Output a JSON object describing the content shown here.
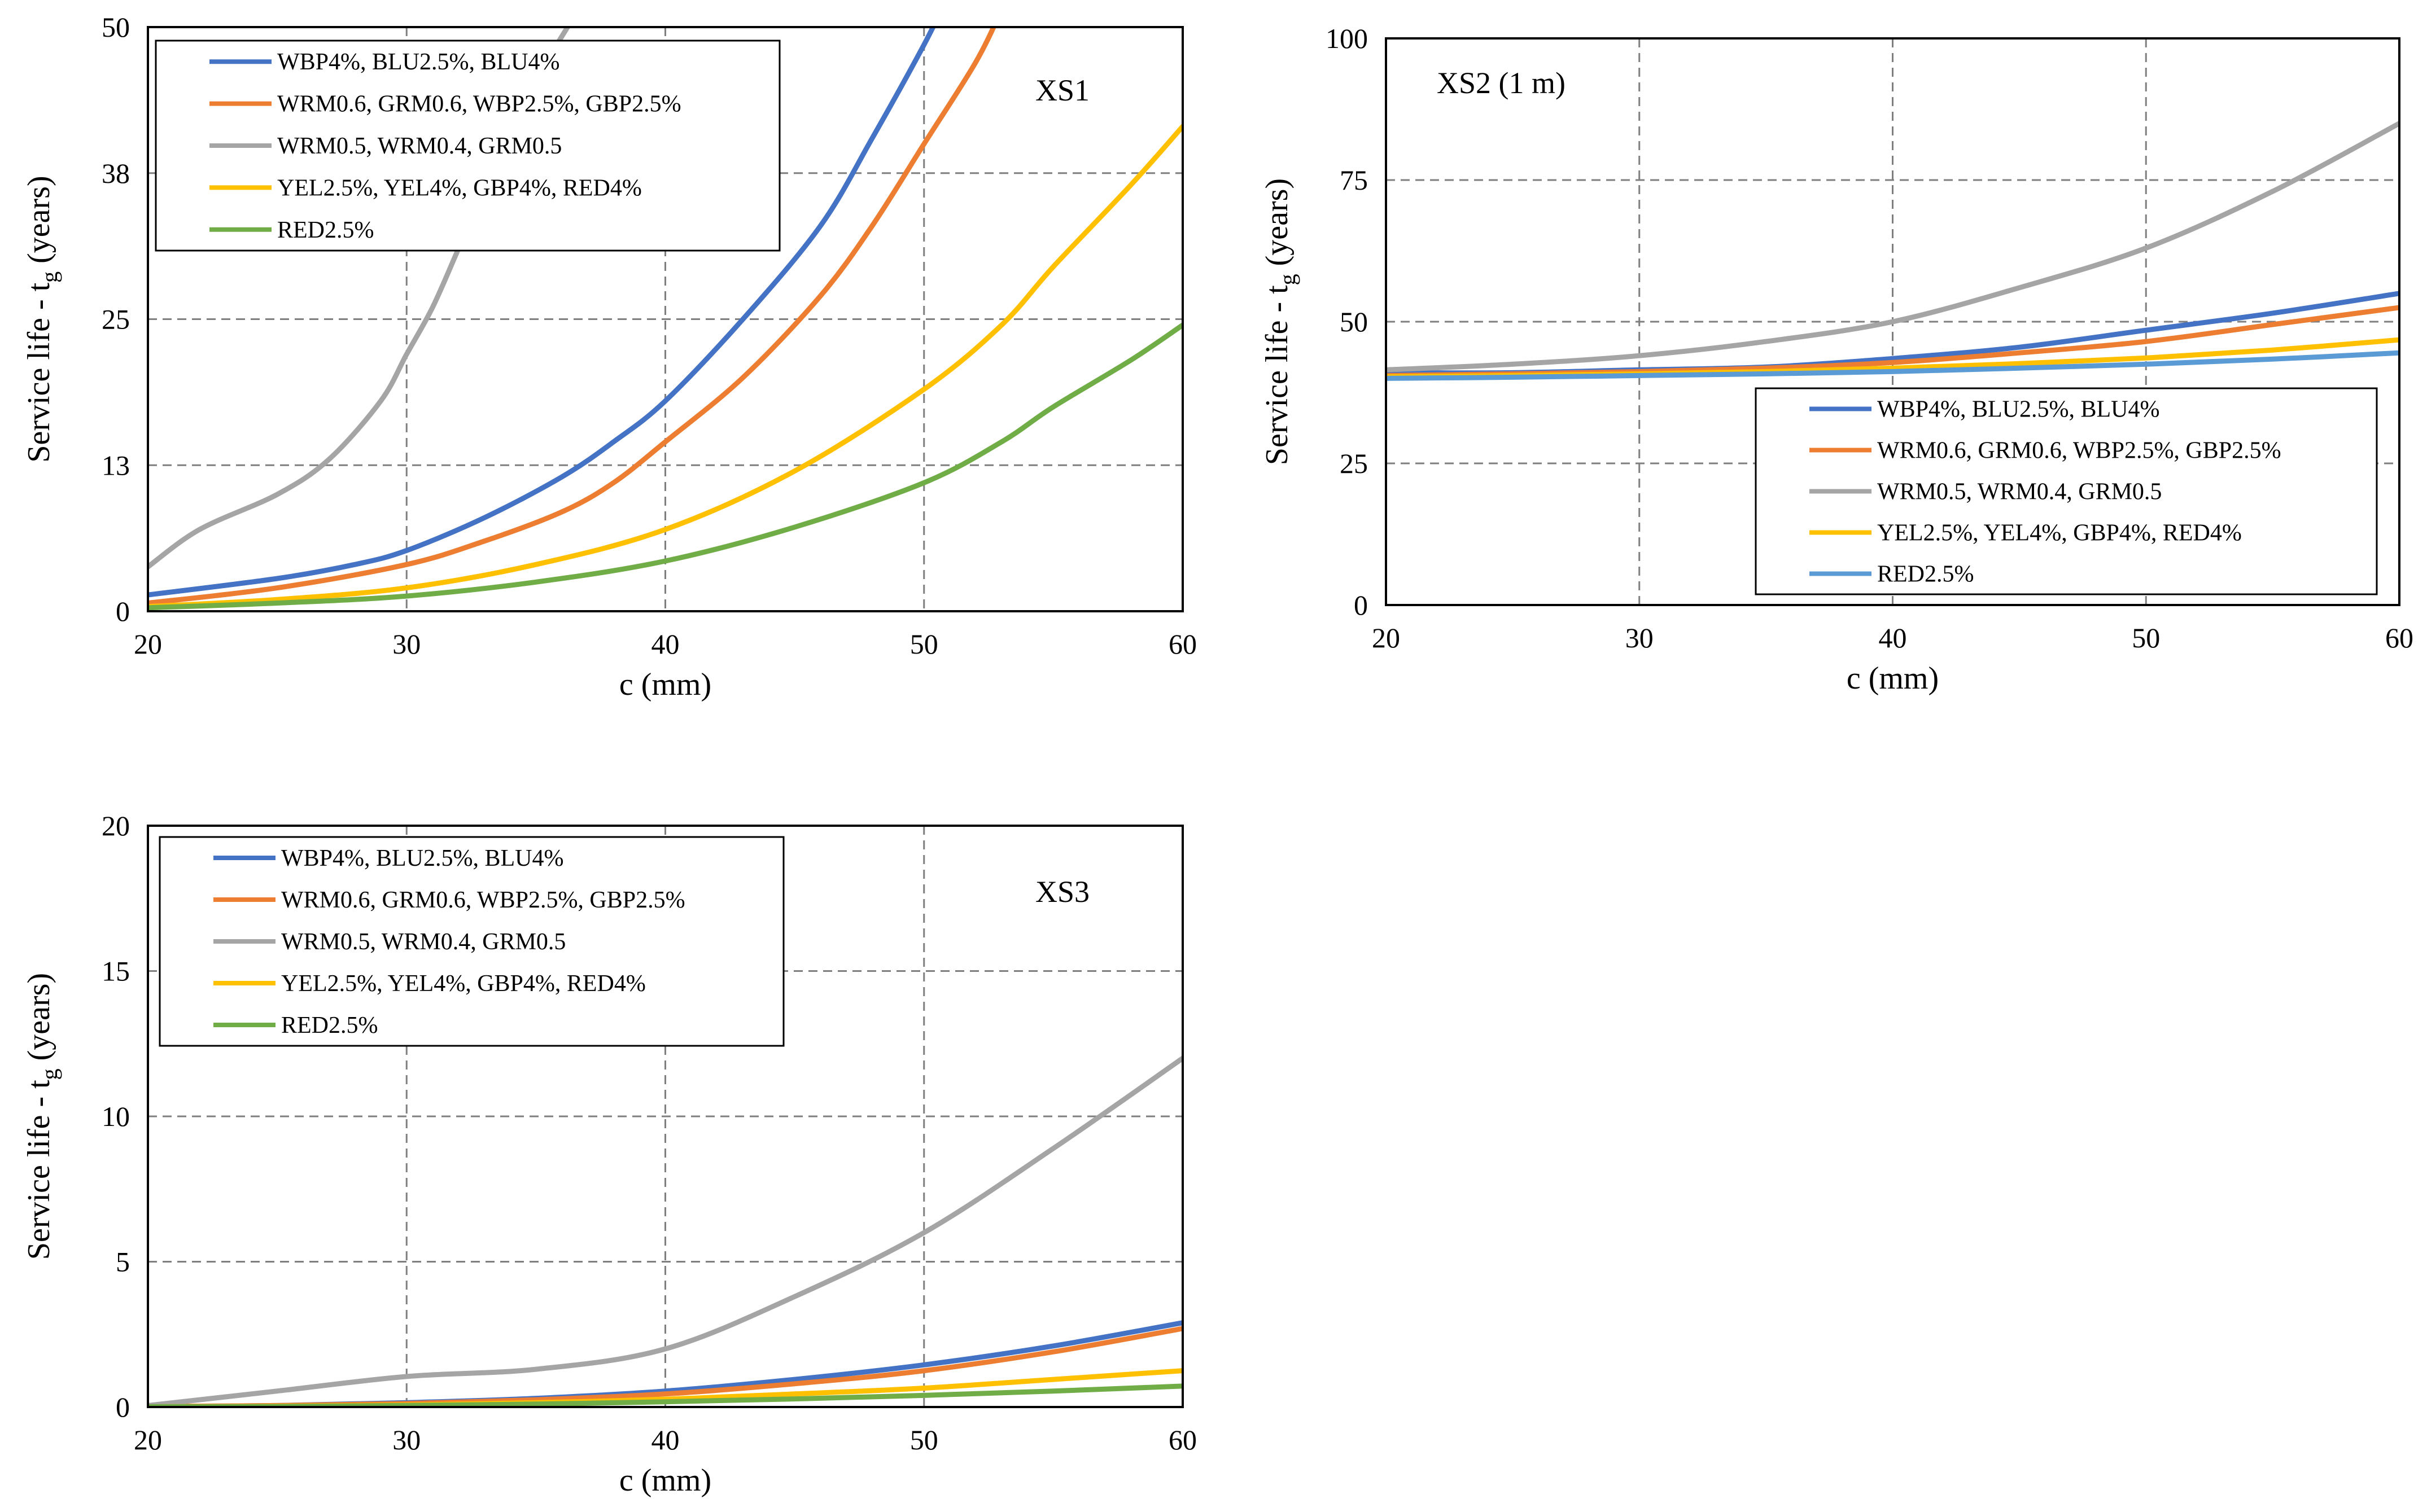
{
  "chart_data": [
    {
      "type": "line",
      "title": "",
      "panel_label": "XS1",
      "xlabel": "c (mm)",
      "ylabel": "Service life - t",
      "ylabel_subscript": "g",
      "ylabel_suffix": " (years)",
      "xlim": [
        20,
        60
      ],
      "ylim": [
        0,
        50
      ],
      "xticks": [
        "20",
        "30",
        "40",
        "50",
        "60"
      ],
      "xtick_values": [
        20,
        30,
        40,
        50,
        60
      ],
      "yticks": [
        "0",
        "13",
        "25",
        "38",
        "50"
      ],
      "ytick_values": [
        0,
        12.5,
        25,
        37.5,
        50
      ],
      "grid": true,
      "legend_position": "top-left",
      "series": [
        {
          "name": "WBP4%, BLU2.5%, BLU4%",
          "color": "#4472C4",
          "x": [
            20,
            25,
            28,
            30,
            33,
            36,
            38,
            40,
            43,
            46,
            48,
            50,
            51
          ],
          "y": [
            1.4,
            2.8,
            4.0,
            5.2,
            8.0,
            11.5,
            14.5,
            18.0,
            25.0,
            33.0,
            40.5,
            48.5,
            53.0
          ]
        },
        {
          "name": "WRM0.6, GRM0.6, WBP2.5%,  GBP2.5%",
          "color": "#ED7D31",
          "x": [
            20,
            25,
            30,
            33,
            36,
            38,
            40,
            43,
            46,
            48,
            50,
            52,
            53
          ],
          "y": [
            0.7,
            2.0,
            4.0,
            6.0,
            8.5,
            11.0,
            14.5,
            20.0,
            27.0,
            33.0,
            40.0,
            47.0,
            51.5
          ]
        },
        {
          "name": "WRM0.5, WRM0.4, GRM0.5",
          "color": "#A5A5A5",
          "x": [
            20,
            22,
            25,
            27,
            29,
            30,
            31,
            32,
            33,
            34,
            35,
            36.5
          ],
          "y": [
            3.8,
            7.0,
            10.0,
            13.0,
            18.0,
            22.0,
            26.0,
            31.0,
            36.0,
            41.0,
            45.5,
            51.0
          ]
        },
        {
          "name": "YEL2.5%, YEL4%, GBP4%, RED4%",
          "color": "#FFC000",
          "x": [
            20,
            25,
            30,
            35,
            40,
            45,
            50,
            53,
            55,
            58,
            60
          ],
          "y": [
            0.4,
            1.0,
            2.0,
            4.0,
            7.0,
            12.0,
            19.0,
            24.5,
            29.5,
            36.5,
            41.5
          ]
        },
        {
          "name": "RED2.5%",
          "color": "#70AD47",
          "x": [
            20,
            25,
            30,
            35,
            40,
            45,
            50,
            53,
            55,
            58,
            60
          ],
          "y": [
            0.3,
            0.7,
            1.3,
            2.5,
            4.3,
            7.2,
            11.0,
            14.5,
            17.5,
            21.5,
            24.5
          ]
        }
      ]
    },
    {
      "type": "line",
      "title": "",
      "panel_label": "XS2 (1 m)",
      "xlabel": "c (mm)",
      "ylabel": "Service life - t",
      "ylabel_subscript": "g",
      "ylabel_suffix": " (years)",
      "xlim": [
        20,
        60
      ],
      "ylim": [
        0,
        100
      ],
      "xticks": [
        "20",
        "30",
        "40",
        "50",
        "60"
      ],
      "xtick_values": [
        20,
        30,
        40,
        50,
        60
      ],
      "yticks": [
        "0",
        "25",
        "50",
        "75",
        "100"
      ],
      "ytick_values": [
        0,
        25,
        50,
        75,
        100
      ],
      "grid": true,
      "legend_position": "bottom-right",
      "series": [
        {
          "name": "WBP4%, BLU2.5%, BLU4%",
          "color": "#4472C4",
          "x": [
            20,
            25,
            30,
            35,
            40,
            45,
            50,
            55,
            60
          ],
          "y": [
            41.0,
            41.0,
            41.5,
            42.0,
            43.5,
            45.5,
            48.5,
            51.5,
            55.0
          ]
        },
        {
          "name": "WRM0.6, GRM0.6, WBP2.5%,  GBP2.5%",
          "color": "#ED7D31",
          "x": [
            20,
            25,
            30,
            35,
            40,
            45,
            50,
            55,
            60
          ],
          "y": [
            40.5,
            40.8,
            41.2,
            41.8,
            42.8,
            44.5,
            46.5,
            49.5,
            52.5
          ]
        },
        {
          "name": "WRM0.5, WRM0.4, GRM0.5",
          "color": "#A5A5A5",
          "x": [
            20,
            25,
            30,
            35,
            40,
            45,
            50,
            55,
            60
          ],
          "y": [
            41.5,
            42.5,
            44.0,
            46.5,
            50.0,
            56.0,
            63.0,
            73.0,
            85.0
          ]
        },
        {
          "name": "YEL2.5%, YEL4%, GBP4%, RED4%",
          "color": "#FFC000",
          "x": [
            20,
            25,
            30,
            35,
            40,
            45,
            50,
            55,
            60
          ],
          "y": [
            40.3,
            40.5,
            40.8,
            41.2,
            41.8,
            42.6,
            43.6,
            45.0,
            46.8
          ]
        },
        {
          "name": "RED2.5%",
          "color": "#5B9BD5",
          "x": [
            20,
            25,
            30,
            35,
            40,
            45,
            50,
            55,
            60
          ],
          "y": [
            40.0,
            40.2,
            40.5,
            40.8,
            41.2,
            41.8,
            42.5,
            43.4,
            44.5
          ]
        }
      ]
    },
    {
      "type": "line",
      "title": "",
      "panel_label": "XS3",
      "xlabel": "c (mm)",
      "ylabel": "Service life - t",
      "ylabel_subscript": "g",
      "ylabel_suffix": " (years)",
      "xlim": [
        20,
        60
      ],
      "ylim": [
        0,
        20
      ],
      "xticks": [
        "20",
        "30",
        "40",
        "50",
        "60"
      ],
      "xtick_values": [
        20,
        30,
        40,
        50,
        60
      ],
      "yticks": [
        "0",
        "5",
        "10",
        "15",
        "20"
      ],
      "ytick_values": [
        0,
        5,
        10,
        15,
        20
      ],
      "grid": true,
      "legend_position": "top-left",
      "series": [
        {
          "name": "WBP4%, BLU2.5%, BLU4%",
          "color": "#4472C4",
          "x": [
            20,
            25,
            30,
            35,
            40,
            45,
            50,
            55,
            60
          ],
          "y": [
            0.02,
            0.05,
            0.15,
            0.3,
            0.55,
            0.95,
            1.45,
            2.1,
            2.9
          ]
        },
        {
          "name": "WRM0.6, GRM0.6, WBP2.5%,  GBP2.5%",
          "color": "#ED7D31",
          "x": [
            20,
            25,
            30,
            35,
            40,
            45,
            50,
            55,
            60
          ],
          "y": [
            0.02,
            0.05,
            0.12,
            0.25,
            0.45,
            0.8,
            1.25,
            1.9,
            2.7
          ]
        },
        {
          "name": "WRM0.5, WRM0.4, GRM0.5",
          "color": "#A5A5A5",
          "x": [
            20,
            25,
            30,
            35,
            40,
            45,
            50,
            55,
            60
          ],
          "y": [
            0.05,
            0.55,
            1.05,
            1.3,
            2.0,
            3.8,
            6.0,
            8.9,
            12.0
          ]
        },
        {
          "name": "YEL2.5%, YEL4%, GBP4%, RED4%",
          "color": "#FFC000",
          "x": [
            20,
            25,
            30,
            35,
            40,
            45,
            50,
            55,
            60
          ],
          "y": [
            0.01,
            0.03,
            0.07,
            0.15,
            0.27,
            0.45,
            0.65,
            0.95,
            1.25
          ]
        },
        {
          "name": "RED2.5%",
          "color": "#70AD47",
          "x": [
            20,
            25,
            30,
            35,
            40,
            45,
            50,
            55,
            60
          ],
          "y": [
            0.01,
            0.02,
            0.05,
            0.1,
            0.18,
            0.28,
            0.4,
            0.55,
            0.72
          ]
        }
      ]
    }
  ]
}
